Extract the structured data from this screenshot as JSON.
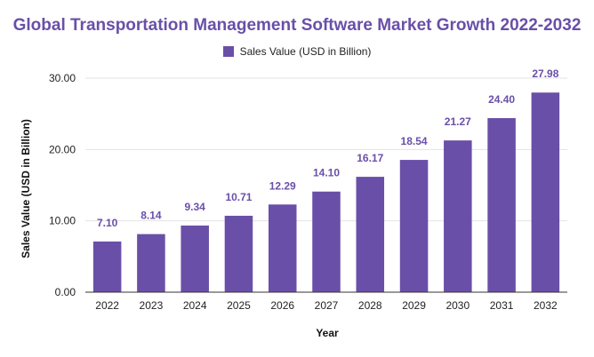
{
  "chart_data": {
    "type": "bar",
    "title": "Global Transportation Management Software Market Growth 2022-2032",
    "xlabel": "Year",
    "ylabel": "Sales Value (USD in Billion)",
    "categories": [
      "2022",
      "2023",
      "2024",
      "2025",
      "2026",
      "2027",
      "2028",
      "2029",
      "2030",
      "2031",
      "2032"
    ],
    "series": [
      {
        "name": "Sales Value (USD in Billion)",
        "values": [
          7.1,
          8.14,
          9.34,
          10.71,
          12.29,
          14.1,
          16.17,
          18.54,
          21.27,
          24.4,
          27.98
        ],
        "labels": [
          "7.10",
          "8.14",
          "9.34",
          "10.71",
          "12.29",
          "14.10",
          "16.17",
          "18.54",
          "21.27",
          "24.40",
          "27.98"
        ],
        "color": "#6a4fa8"
      }
    ],
    "ylim": [
      0,
      30
    ],
    "yticks": [
      0,
      10,
      20,
      30
    ],
    "ytick_labels": [
      "0.00",
      "10.00",
      "20.00",
      "30.00"
    ],
    "grid": true,
    "legend_position": "top-center",
    "colors": {
      "bar": "#6a4fa8",
      "title": "#6a4fa8",
      "data_label": "#6a4fa8",
      "grid": "#e3e3e3",
      "axis": "#333333"
    }
  }
}
